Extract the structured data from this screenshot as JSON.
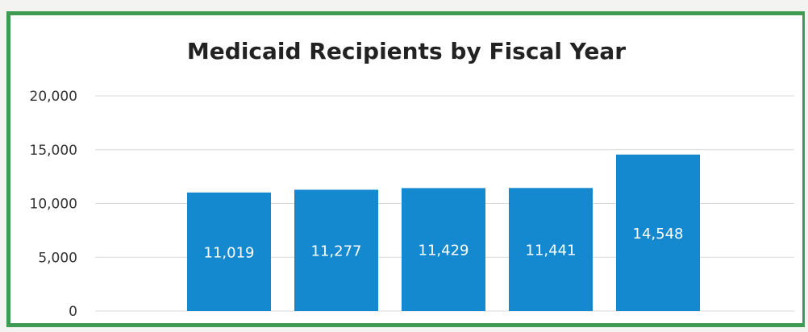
{
  "chart_data": {
    "type": "bar",
    "title": "Medicaid Recipients by Fiscal Year",
    "xlabel": "",
    "ylabel": "",
    "categories": [
      "",
      "",
      "",
      "",
      ""
    ],
    "values": [
      11019,
      11277,
      11429,
      11441,
      14548
    ],
    "data_labels": [
      "11,019",
      "11,277",
      "11,429",
      "11,441",
      "14,548"
    ],
    "ylim": [
      0,
      20000
    ],
    "yticks": [
      0,
      5000,
      10000,
      15000,
      20000
    ],
    "ytick_labels": [
      "0",
      "5,000",
      "10,000",
      "15,000",
      "20,000"
    ],
    "grid": true,
    "legend": "none",
    "colors": {
      "bar": "#1489cf",
      "grid": "#d9d9d9",
      "frame": "#3f9a52"
    }
  }
}
